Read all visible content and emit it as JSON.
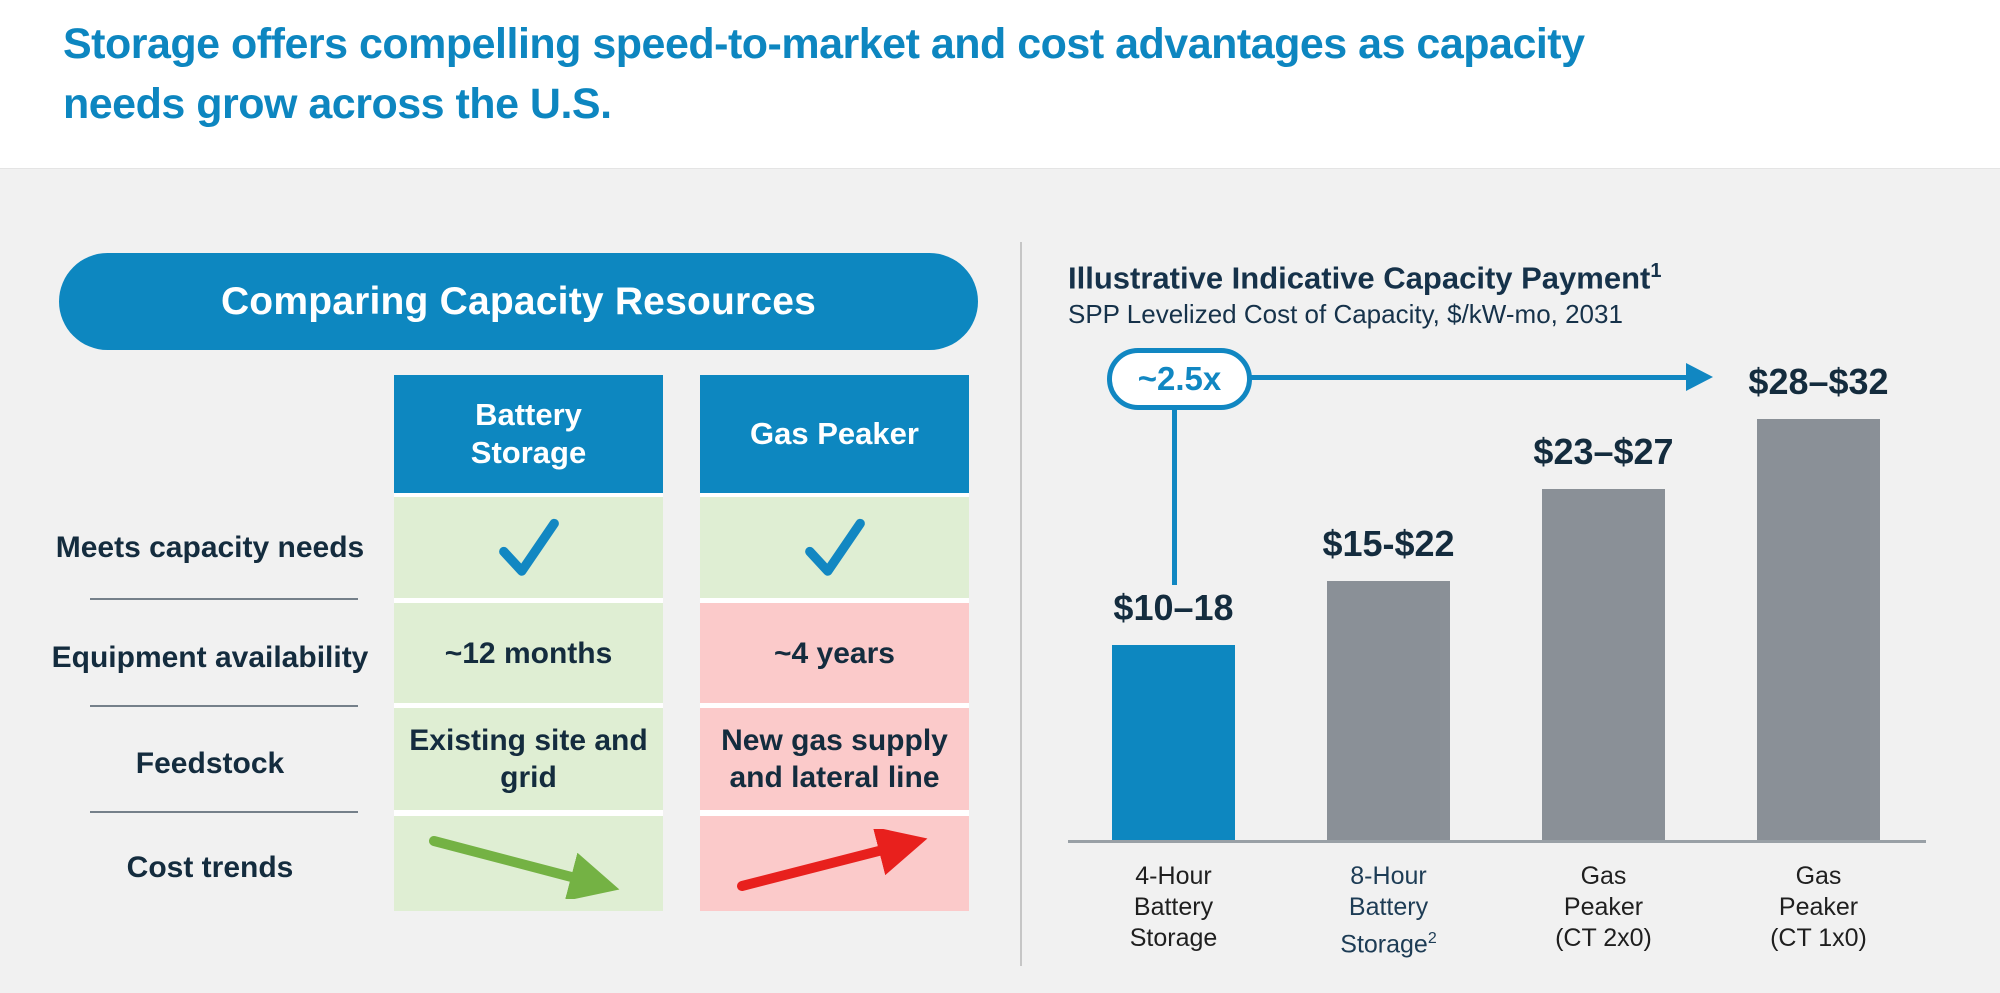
{
  "header": {
    "title_line1": "Storage offers compelling speed-to-market and cost advantages as capacity",
    "title_line2": "needs grow across the U.S."
  },
  "comparison": {
    "title": "Comparing Capacity Resources",
    "columns": [
      "Battery Storage",
      "Gas Peaker"
    ],
    "rows": [
      {
        "label": "Meets capacity needs",
        "battery": "yes-checkmark",
        "gas": "yes-checkmark"
      },
      {
        "label": "Equipment availability",
        "battery": "~12 months",
        "gas": "~4 years"
      },
      {
        "label": "Feedstock",
        "battery": "Existing site and grid",
        "gas": "New gas supply and lateral line"
      },
      {
        "label": "Cost trends",
        "battery": "decreasing-cost-arrow",
        "gas": "increasing-cost-arrow"
      }
    ]
  },
  "chart_data": {
    "type": "bar",
    "title": "Illustrative Indicative Capacity Payment",
    "title_superscript": "1",
    "subtitle": "SPP Levelized Cost of Capacity, $/kW-mo, 2031",
    "annotation": {
      "label": "~2.5x",
      "from_category": "4-Hour Battery Storage",
      "to_category": "Gas Peaker (CT 1x0)"
    },
    "categories": [
      "4-Hour Battery Storage",
      "8-Hour Battery Storage",
      "Gas Peaker (CT 2x0)",
      "Gas Peaker (CT 1x0)"
    ],
    "ylim": [
      0,
      32
    ],
    "unit": "$/kW-mo",
    "grid": false,
    "legend": false,
    "bars": [
      {
        "category": "4-Hour Battery Storage",
        "category_superscript": "",
        "category_color": "#1f1f1f",
        "value_label": "$10–18",
        "range": [
          10,
          18
        ],
        "midpoint": 14,
        "color": "#0d87c0"
      },
      {
        "category": "8-Hour Battery Storage",
        "category_superscript": "2",
        "category_color": "#1d3c55",
        "value_label": "$15-$22",
        "range": [
          15,
          22
        ],
        "midpoint": 18.5,
        "color": "#8a9097"
      },
      {
        "category": "Gas Peaker (CT 2x0)",
        "category_superscript": "",
        "category_color": "#1f1f1f",
        "value_label": "$23–$27",
        "range": [
          23,
          27
        ],
        "midpoint": 25,
        "color": "#8a9097"
      },
      {
        "category": "Gas Peaker (CT 1x0)",
        "category_superscript": "",
        "category_color": "#1f1f1f",
        "value_label": "$28–$32",
        "range": [
          28,
          32
        ],
        "midpoint": 30,
        "color": "#8a9097"
      }
    ]
  },
  "colors": {
    "accent_blue": "#0d87c0",
    "navy_text": "#142c3e",
    "green_cell": "#dfeed3",
    "red_cell": "#fbcaca",
    "bar_gray": "#8a9097",
    "arrow_green": "#74b244",
    "arrow_red": "#e8201d",
    "background": "#f1f1f1",
    "divider": "#c6c6c6"
  }
}
